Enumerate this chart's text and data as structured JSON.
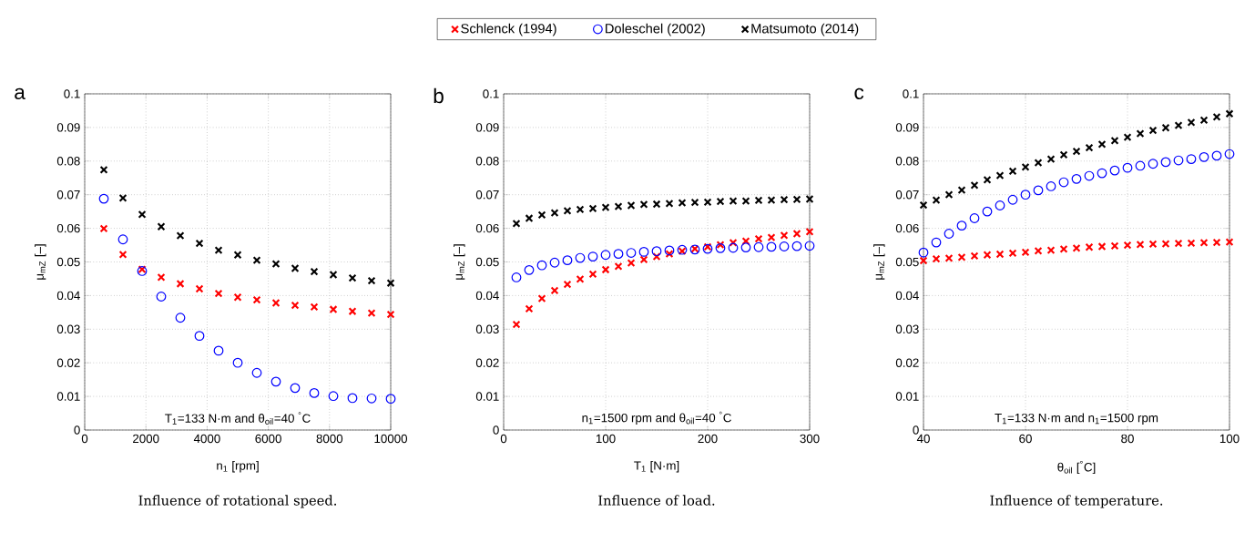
{
  "chart_data": [
    {
      "type": "scatter",
      "title": "Influence of rotational speed.",
      "xlabel": "n$_{1}$ [rpm]",
      "ylabel": "μ$_{mZ}$ [–]",
      "annotations": [
        "a",
        "T$_{1}$=133 N·m and θ$_{oil}$=40 $^{°}$C"
      ],
      "xlim": [
        0,
        10000
      ],
      "xticks": [
        0,
        2000,
        4000,
        6000,
        8000,
        10000
      ],
      "ylim": [
        0,
        0.1
      ],
      "yticks": [
        0,
        0.01,
        0.02,
        0.03,
        0.04,
        0.05,
        0.06,
        0.07,
        0.08,
        0.09,
        0.1
      ],
      "grid": true,
      "legend": false,
      "x": [
        625,
        1250,
        1875,
        2500,
        3125,
        3750,
        4375,
        5000,
        5625,
        6250,
        6875,
        7500,
        8125,
        8750,
        9375,
        10000
      ],
      "series": [
        {
          "color": "#ff0000",
          "marker": "cross",
          "values": [
            0.0599,
            0.0522,
            0.0478,
            0.0454,
            0.0435,
            0.042,
            0.0406,
            0.0395,
            0.0387,
            0.0378,
            0.0371,
            0.0366,
            0.0359,
            0.0353,
            0.0348,
            0.0344
          ]
        },
        {
          "color": "#0000ff",
          "marker": "circle",
          "values": [
            0.0688,
            0.0567,
            0.0473,
            0.0397,
            0.0334,
            0.028,
            0.0236,
            0.02,
            0.017,
            0.0144,
            0.0125,
            0.011,
            0.0101,
            0.0095,
            0.0094,
            0.0093
          ]
        },
        {
          "color": "#000000",
          "marker": "cross",
          "values": [
            0.0774,
            0.069,
            0.0641,
            0.0605,
            0.0578,
            0.0555,
            0.0535,
            0.0521,
            0.0505,
            0.0494,
            0.0481,
            0.0471,
            0.0462,
            0.0452,
            0.0444,
            0.0437
          ]
        }
      ]
    },
    {
      "type": "scatter",
      "title": "Influence of load.",
      "xlabel": "T$_{1}$ [N·m]",
      "ylabel": "μ$_{mZ}$ [–]",
      "annotations": [
        "b",
        "n$_{1}$=1500 rpm and θ$_{oil}$=40 $^{°}$C"
      ],
      "xlim": [
        0,
        300
      ],
      "xticks": [
        0,
        100,
        200,
        300
      ],
      "ylim": [
        0,
        0.1
      ],
      "yticks": [
        0,
        0.01,
        0.02,
        0.03,
        0.04,
        0.05,
        0.06,
        0.07,
        0.08,
        0.09,
        0.1
      ],
      "grid": true,
      "legend": "top",
      "x": [
        12.5,
        25,
        37.5,
        50,
        62.5,
        75,
        87.5,
        100,
        112.5,
        125,
        137.5,
        150,
        162.5,
        175,
        187.5,
        200,
        212.5,
        225,
        237.5,
        250,
        262.5,
        275,
        287.5,
        300
      ],
      "series": [
        {
          "name": "Schlenck (1994)",
          "color": "#ff0000",
          "marker": "cross",
          "values": [
            0.0314,
            0.0361,
            0.0391,
            0.0415,
            0.0433,
            0.0449,
            0.0464,
            0.0477,
            0.0487,
            0.0497,
            0.0507,
            0.0516,
            0.0524,
            0.0532,
            0.0539,
            0.0545,
            0.0551,
            0.0557,
            0.0562,
            0.0569,
            0.0573,
            0.0579,
            0.0584,
            0.059
          ]
        },
        {
          "name": "Doleschel (2002)",
          "color": "#0000ff",
          "marker": "circle",
          "values": [
            0.0454,
            0.0476,
            0.049,
            0.0498,
            0.0505,
            0.0512,
            0.0516,
            0.0521,
            0.0524,
            0.0527,
            0.053,
            0.0532,
            0.0534,
            0.0536,
            0.0537,
            0.0539,
            0.0541,
            0.0542,
            0.0543,
            0.0544,
            0.0545,
            0.0546,
            0.0547,
            0.0548
          ]
        },
        {
          "name": "Matsumoto (2014)",
          "color": "#000000",
          "marker": "cross",
          "values": [
            0.0614,
            0.063,
            0.064,
            0.0646,
            0.0652,
            0.0656,
            0.0659,
            0.0662,
            0.0665,
            0.0668,
            0.0671,
            0.0672,
            0.0674,
            0.0676,
            0.0677,
            0.0678,
            0.068,
            0.0681,
            0.0681,
            0.0683,
            0.0684,
            0.0685,
            0.0686,
            0.0687
          ]
        }
      ]
    },
    {
      "type": "scatter",
      "title": "Influence of temperature.",
      "xlabel": "θ$_{oil}$ [$^{°}$C]",
      "ylabel": "μ$_{mZ}$ [–]",
      "annotations": [
        "c",
        "T$_{1}$=133 N·m and n$_{1}$=1500 rpm"
      ],
      "xlim": [
        40,
        100
      ],
      "xticks": [
        40,
        60,
        80,
        100
      ],
      "ylim": [
        0,
        0.1
      ],
      "yticks": [
        0,
        0.01,
        0.02,
        0.03,
        0.04,
        0.05,
        0.06,
        0.07,
        0.08,
        0.09,
        0.1
      ],
      "grid": true,
      "legend": false,
      "x": [
        40,
        42.5,
        45,
        47.5,
        50,
        52.5,
        55,
        57.5,
        60,
        62.5,
        65,
        67.5,
        70,
        72.5,
        75,
        77.5,
        80,
        82.5,
        85,
        87.5,
        90,
        92.5,
        95,
        97.5,
        100
      ],
      "series": [
        {
          "color": "#ff0000",
          "marker": "cross",
          "values": [
            0.0504,
            0.0509,
            0.0511,
            0.0514,
            0.0518,
            0.0521,
            0.0523,
            0.0526,
            0.0529,
            0.0533,
            0.0535,
            0.0538,
            0.0541,
            0.0544,
            0.0546,
            0.0548,
            0.055,
            0.0552,
            0.0553,
            0.0554,
            0.0555,
            0.0556,
            0.0557,
            0.0558,
            0.0559
          ]
        },
        {
          "color": "#0000ff",
          "marker": "circle",
          "values": [
            0.0528,
            0.0558,
            0.0584,
            0.0608,
            0.063,
            0.065,
            0.0668,
            0.0685,
            0.07,
            0.0713,
            0.0725,
            0.0737,
            0.0747,
            0.0756,
            0.0764,
            0.0772,
            0.078,
            0.0786,
            0.0792,
            0.0797,
            0.0802,
            0.0806,
            0.0812,
            0.0816,
            0.0821
          ]
        },
        {
          "color": "#000000",
          "marker": "cross",
          "values": [
            0.0669,
            0.0684,
            0.07,
            0.0714,
            0.0728,
            0.0744,
            0.0757,
            0.077,
            0.0782,
            0.0795,
            0.0806,
            0.0819,
            0.0829,
            0.084,
            0.085,
            0.0861,
            0.0871,
            0.0882,
            0.0891,
            0.0899,
            0.0906,
            0.0915,
            0.0922,
            0.0931,
            0.0941
          ]
        }
      ]
    }
  ]
}
